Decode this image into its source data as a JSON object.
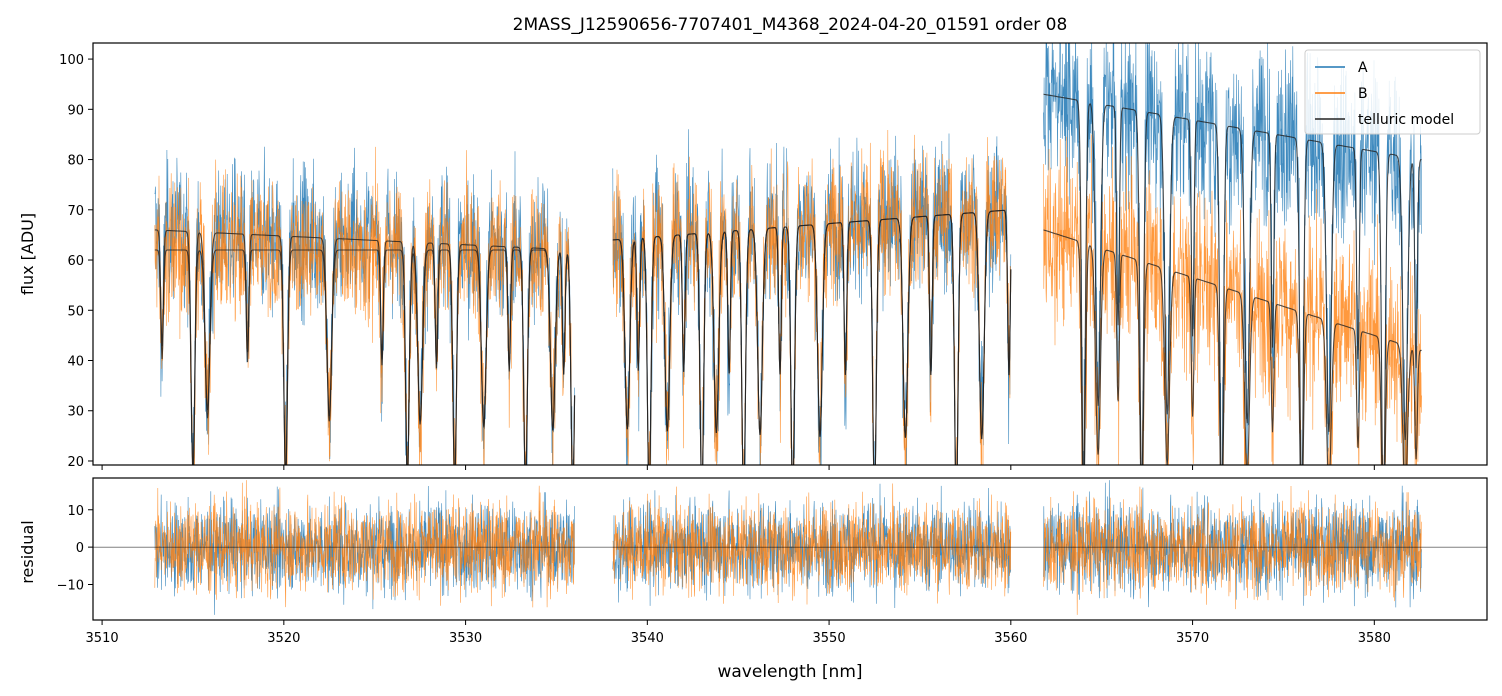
{
  "chart_data": [
    {
      "type": "line",
      "panel": "top",
      "title": "2MASS_J12590656-7707401_M4368_2024-04-20_01591  order 08",
      "xlabel": "",
      "ylabel": "flux [ADU]",
      "xlim": [
        3509.5,
        3586.2
      ],
      "ylim": [
        19.2,
        103.2
      ],
      "xticks": [
        3510,
        3520,
        3530,
        3540,
        3550,
        3560,
        3570,
        3580
      ],
      "yticks": [
        20,
        30,
        40,
        50,
        60,
        70,
        80,
        90,
        100
      ],
      "ytick_labels": [
        "20",
        "30",
        "40",
        "50",
        "60",
        "70",
        "80",
        "90",
        "100"
      ],
      "legend": {
        "position": "top-right",
        "entries": [
          {
            "label": "A",
            "color": "#1f77b4"
          },
          {
            "label": "B",
            "color": "#ff7f0e"
          },
          {
            "label": "telluric model",
            "color": "#222222"
          }
        ]
      },
      "segments": [
        {
          "start": 3512.9,
          "end": 3536.0,
          "A_level_start": 66,
          "A_level_end": 62,
          "B_level_start": 62,
          "B_level_end": 62,
          "noise": 7
        },
        {
          "start": 3538.1,
          "end": 3560.0,
          "A_level_start": 64,
          "A_level_end": 70,
          "B_level_start": 64,
          "B_level_end": 70,
          "noise": 7
        },
        {
          "start": 3561.8,
          "end": 3582.6,
          "A_level_start": 93,
          "A_level_end": 80,
          "B_level_start": 66,
          "B_level_end": 42,
          "noise": 9
        }
      ],
      "telluric_lines": [
        3513.3,
        3515.0,
        3515.8,
        3518.0,
        3520.1,
        3522.5,
        3525.4,
        3526.8,
        3527.5,
        3528.4,
        3529.4,
        3531.0,
        3532.4,
        3533.3,
        3534.8,
        3535.4,
        3535.9,
        3538.9,
        3539.5,
        3540.1,
        3541.1,
        3542.0,
        3543.0,
        3543.8,
        3544.5,
        3545.3,
        3546.2,
        3547.3,
        3548.0,
        3549.5,
        3550.9,
        3552.5,
        3554.2,
        3555.6,
        3557.0,
        3558.4,
        3559.9,
        3564.0,
        3564.8,
        3565.9,
        3567.2,
        3568.6,
        3570.0,
        3571.6,
        3573.0,
        3574.4,
        3576.0,
        3577.5,
        3579.1,
        3580.5,
        3581.7,
        3582.3
      ]
    },
    {
      "type": "line",
      "panel": "bottom",
      "xlabel": "wavelength [nm]",
      "ylabel": "residual",
      "xlim": [
        3509.5,
        3586.2
      ],
      "ylim": [
        -19.5,
        18.5
      ],
      "xticks": [
        3510,
        3520,
        3530,
        3540,
        3550,
        3560,
        3570,
        3580
      ],
      "xtick_labels": [
        "3510",
        "3520",
        "3530",
        "3540",
        "3550",
        "3560",
        "3570",
        "3580"
      ],
      "yticks": [
        -10,
        0,
        10
      ],
      "ytick_labels": [
        "−10",
        "0",
        "10"
      ],
      "zero_line": 0,
      "series": [
        {
          "name": "A residual",
          "color": "#1f77b4",
          "noise_sd": 6
        },
        {
          "name": "B residual",
          "color": "#ff7f0e",
          "noise_sd": 6
        }
      ]
    }
  ]
}
